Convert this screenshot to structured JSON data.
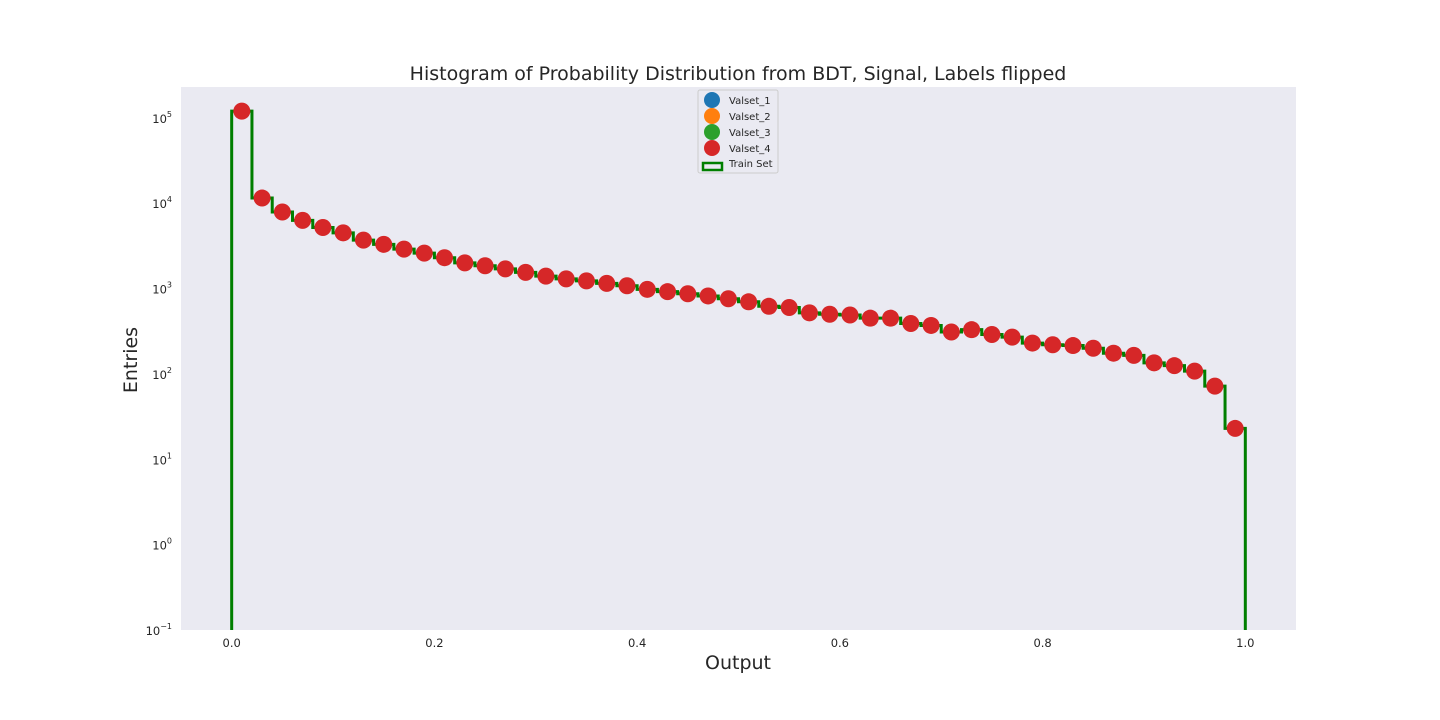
{
  "colors": {
    "background": "#eaeaf2",
    "train_line": "#007f00",
    "valset_1": "#1f77b4",
    "valset_2": "#ff7f0e",
    "valset_3": "#2ca02c",
    "valset_4": "#d62728"
  },
  "chart_data": {
    "type": "histogram",
    "title": "Histogram of Probability Distribution from BDT, Signal, Labels flipped",
    "xlabel": "Output",
    "ylabel": "Entries",
    "xlim": [
      -0.05,
      1.05
    ],
    "ylim": [
      0.1,
      230000
    ],
    "yscale": "log",
    "grid": false,
    "legend_position": "top-center",
    "x_ticks": [
      "0.0",
      "0.2",
      "0.4",
      "0.6",
      "0.8",
      "1.0"
    ],
    "y_ticks": [
      {
        "base": "10",
        "exp": "5"
      },
      {
        "base": "10",
        "exp": "4"
      },
      {
        "base": "10",
        "exp": "3"
      },
      {
        "base": "10",
        "exp": "2"
      },
      {
        "base": "10",
        "exp": "1"
      },
      {
        "base": "10",
        "exp": "0"
      },
      {
        "base": "10",
        "exp": "−1"
      }
    ],
    "bin_edges": [
      0.0,
      0.02,
      0.04,
      0.06,
      0.08,
      0.1,
      0.12,
      0.14,
      0.16,
      0.18,
      0.2,
      0.22,
      0.24,
      0.26,
      0.28,
      0.3,
      0.32,
      0.34,
      0.36,
      0.38,
      0.4,
      0.42,
      0.44,
      0.46,
      0.48,
      0.5,
      0.52,
      0.54,
      0.56,
      0.58,
      0.6,
      0.62,
      0.64,
      0.66,
      0.68,
      0.7,
      0.72,
      0.74,
      0.76,
      0.78,
      0.8,
      0.82,
      0.84,
      0.86,
      0.88,
      0.9,
      0.92,
      0.94,
      0.96,
      0.98,
      1.0
    ],
    "series": [
      {
        "name": "Valset_1",
        "kind": "points"
      },
      {
        "name": "Valset_2",
        "kind": "points"
      },
      {
        "name": "Valset_3",
        "kind": "points"
      },
      {
        "name": "Valset_4",
        "kind": "points"
      },
      {
        "name": "Train Set",
        "kind": "step"
      }
    ],
    "values": [
      120000,
      11500,
      7900,
      6300,
      5200,
      4500,
      3700,
      3300,
      2900,
      2600,
      2300,
      2000,
      1850,
      1700,
      1550,
      1400,
      1300,
      1230,
      1150,
      1080,
      980,
      920,
      870,
      820,
      760,
      700,
      620,
      600,
      520,
      500,
      490,
      450,
      450,
      390,
      370,
      310,
      330,
      290,
      270,
      230,
      220,
      215,
      200,
      175,
      165,
      135,
      125,
      108,
      72,
      23
    ]
  }
}
